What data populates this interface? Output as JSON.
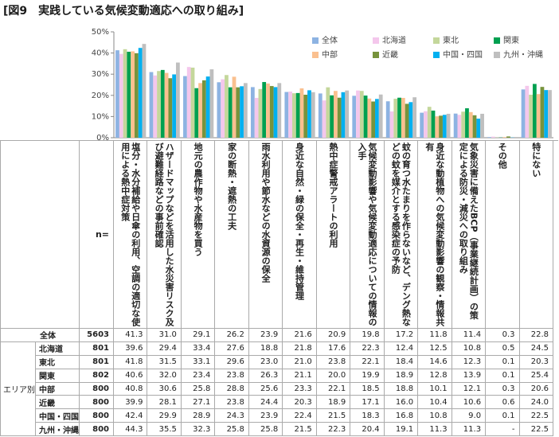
{
  "chart_data": {
    "type": "bar",
    "title": "[図9　実践している気候変動適応への取り組み]",
    "categories": [
      "塩分・水分補給や日傘の利用、空調の適切な使用による熱中症対策",
      "ハザードマップなどを活用した水災害リスク及び避難経路などの事前確認",
      "地元の農作物や水産物を買う",
      "家の断熱・遮熱の工夫",
      "雨水利用や節水などの水資源の保全",
      "身近な自然・緑の保全・再生・維持管理",
      "熱中症警戒アラートの利用",
      "気候変動影響や気候変動適応についての情報の入手",
      "蚊の育つ水たまりを作らないなど、デング熱などの蚊を媒介とする感染症の予防",
      "身近な動植物への気候変動影響の観察・情報共有",
      "気象災害に備えたBCP（事業継続計画）の策定による防災・減災への取り組み",
      "その他",
      "特にない"
    ],
    "ylim": [
      0,
      50
    ],
    "yticks": [
      {
        "value": 0,
        "label": "0%"
      },
      {
        "value": 10,
        "label": "10%"
      },
      {
        "value": 20,
        "label": "20%"
      },
      {
        "value": 30,
        "label": "30%"
      },
      {
        "value": 40,
        "label": "40%"
      },
      {
        "value": 50,
        "label": "50%"
      }
    ],
    "grid": false,
    "legend": "top-right",
    "n_label": "n=",
    "group_label": "エリア別",
    "series": [
      {
        "name": "全体",
        "color": "#8db3e2",
        "n": 5603,
        "values": [
          41.3,
          31.0,
          29.1,
          26.2,
          23.9,
          21.6,
          20.9,
          19.8,
          17.2,
          11.8,
          11.4,
          0.3,
          22.8
        ],
        "value_labels": [
          "41.3",
          "31.0",
          "29.1",
          "26.2",
          "23.9",
          "21.6",
          "20.9",
          "19.8",
          "17.2",
          "11.8",
          "11.4",
          "0.3",
          "22.8"
        ]
      },
      {
        "name": "北海道",
        "color": "#f4c7ec",
        "n": 801,
        "values": [
          39.6,
          29.4,
          33.4,
          27.6,
          18.8,
          21.8,
          17.6,
          22.3,
          12.4,
          12.5,
          10.8,
          0.5,
          24.5
        ],
        "value_labels": [
          "39.6",
          "29.4",
          "33.4",
          "27.6",
          "18.8",
          "21.8",
          "17.6",
          "22.3",
          "12.4",
          "12.5",
          "10.8",
          "0.5",
          "24.5"
        ]
      },
      {
        "name": "東北",
        "color": "#c4d79b",
        "n": 801,
        "values": [
          41.8,
          31.5,
          33.1,
          29.6,
          23.0,
          21.0,
          23.8,
          22.1,
          18.4,
          14.6,
          12.3,
          0.1,
          20.3
        ],
        "value_labels": [
          "41.8",
          "31.5",
          "33.1",
          "29.6",
          "23.0",
          "21.0",
          "23.8",
          "22.1",
          "18.4",
          "14.6",
          "12.3",
          "0.1",
          "20.3"
        ]
      },
      {
        "name": "関東",
        "color": "#00a050",
        "n": 802,
        "values": [
          40.6,
          32.0,
          23.4,
          23.8,
          26.3,
          21.1,
          20.0,
          19.9,
          18.9,
          12.8,
          13.9,
          0.1,
          25.4
        ],
        "value_labels": [
          "40.6",
          "32.0",
          "23.4",
          "23.8",
          "26.3",
          "21.1",
          "20.0",
          "19.9",
          "18.9",
          "12.8",
          "13.9",
          "0.1",
          "25.4"
        ]
      },
      {
        "name": "中部",
        "color": "#fac08f",
        "n": 800,
        "values": [
          40.8,
          30.6,
          25.8,
          28.8,
          25.6,
          23.3,
          22.1,
          18.5,
          18.8,
          10.1,
          12.1,
          0.3,
          20.6
        ],
        "value_labels": [
          "40.8",
          "30.6",
          "25.8",
          "28.8",
          "25.6",
          "23.3",
          "22.1",
          "18.5",
          "18.8",
          "10.1",
          "12.1",
          "0.3",
          "20.6"
        ]
      },
      {
        "name": "近畿",
        "color": "#77933c",
        "n": 800,
        "values": [
          39.9,
          28.1,
          27.1,
          23.8,
          24.4,
          20.3,
          18.9,
          17.1,
          16.0,
          10.4,
          10.6,
          0.6,
          24.0
        ],
        "value_labels": [
          "39.9",
          "28.1",
          "27.1",
          "23.8",
          "24.4",
          "20.3",
          "18.9",
          "17.1",
          "16.0",
          "10.4",
          "10.6",
          "0.6",
          "24.0"
        ]
      },
      {
        "name": "中国・四国",
        "color": "#00b0f0",
        "n": 800,
        "values": [
          42.4,
          29.9,
          28.9,
          24.3,
          23.9,
          22.4,
          21.5,
          18.3,
          16.8,
          10.8,
          9.0,
          0.1,
          22.5
        ],
        "value_labels": [
          "42.4",
          "29.9",
          "28.9",
          "24.3",
          "23.9",
          "22.4",
          "21.5",
          "18.3",
          "16.8",
          "10.8",
          "9.0",
          "0.1",
          "22.5"
        ]
      },
      {
        "name": "九州・沖縄",
        "color": "#bfbfbf",
        "n": 800,
        "values": [
          44.3,
          35.5,
          32.3,
          25.8,
          25.8,
          21.5,
          22.3,
          20.4,
          19.1,
          11.3,
          11.3,
          null,
          22.5
        ],
        "value_labels": [
          "44.3",
          "35.5",
          "32.3",
          "25.8",
          "25.8",
          "21.5",
          "22.3",
          "20.4",
          "19.1",
          "11.3",
          "11.3",
          "-",
          "22.5"
        ]
      }
    ]
  }
}
